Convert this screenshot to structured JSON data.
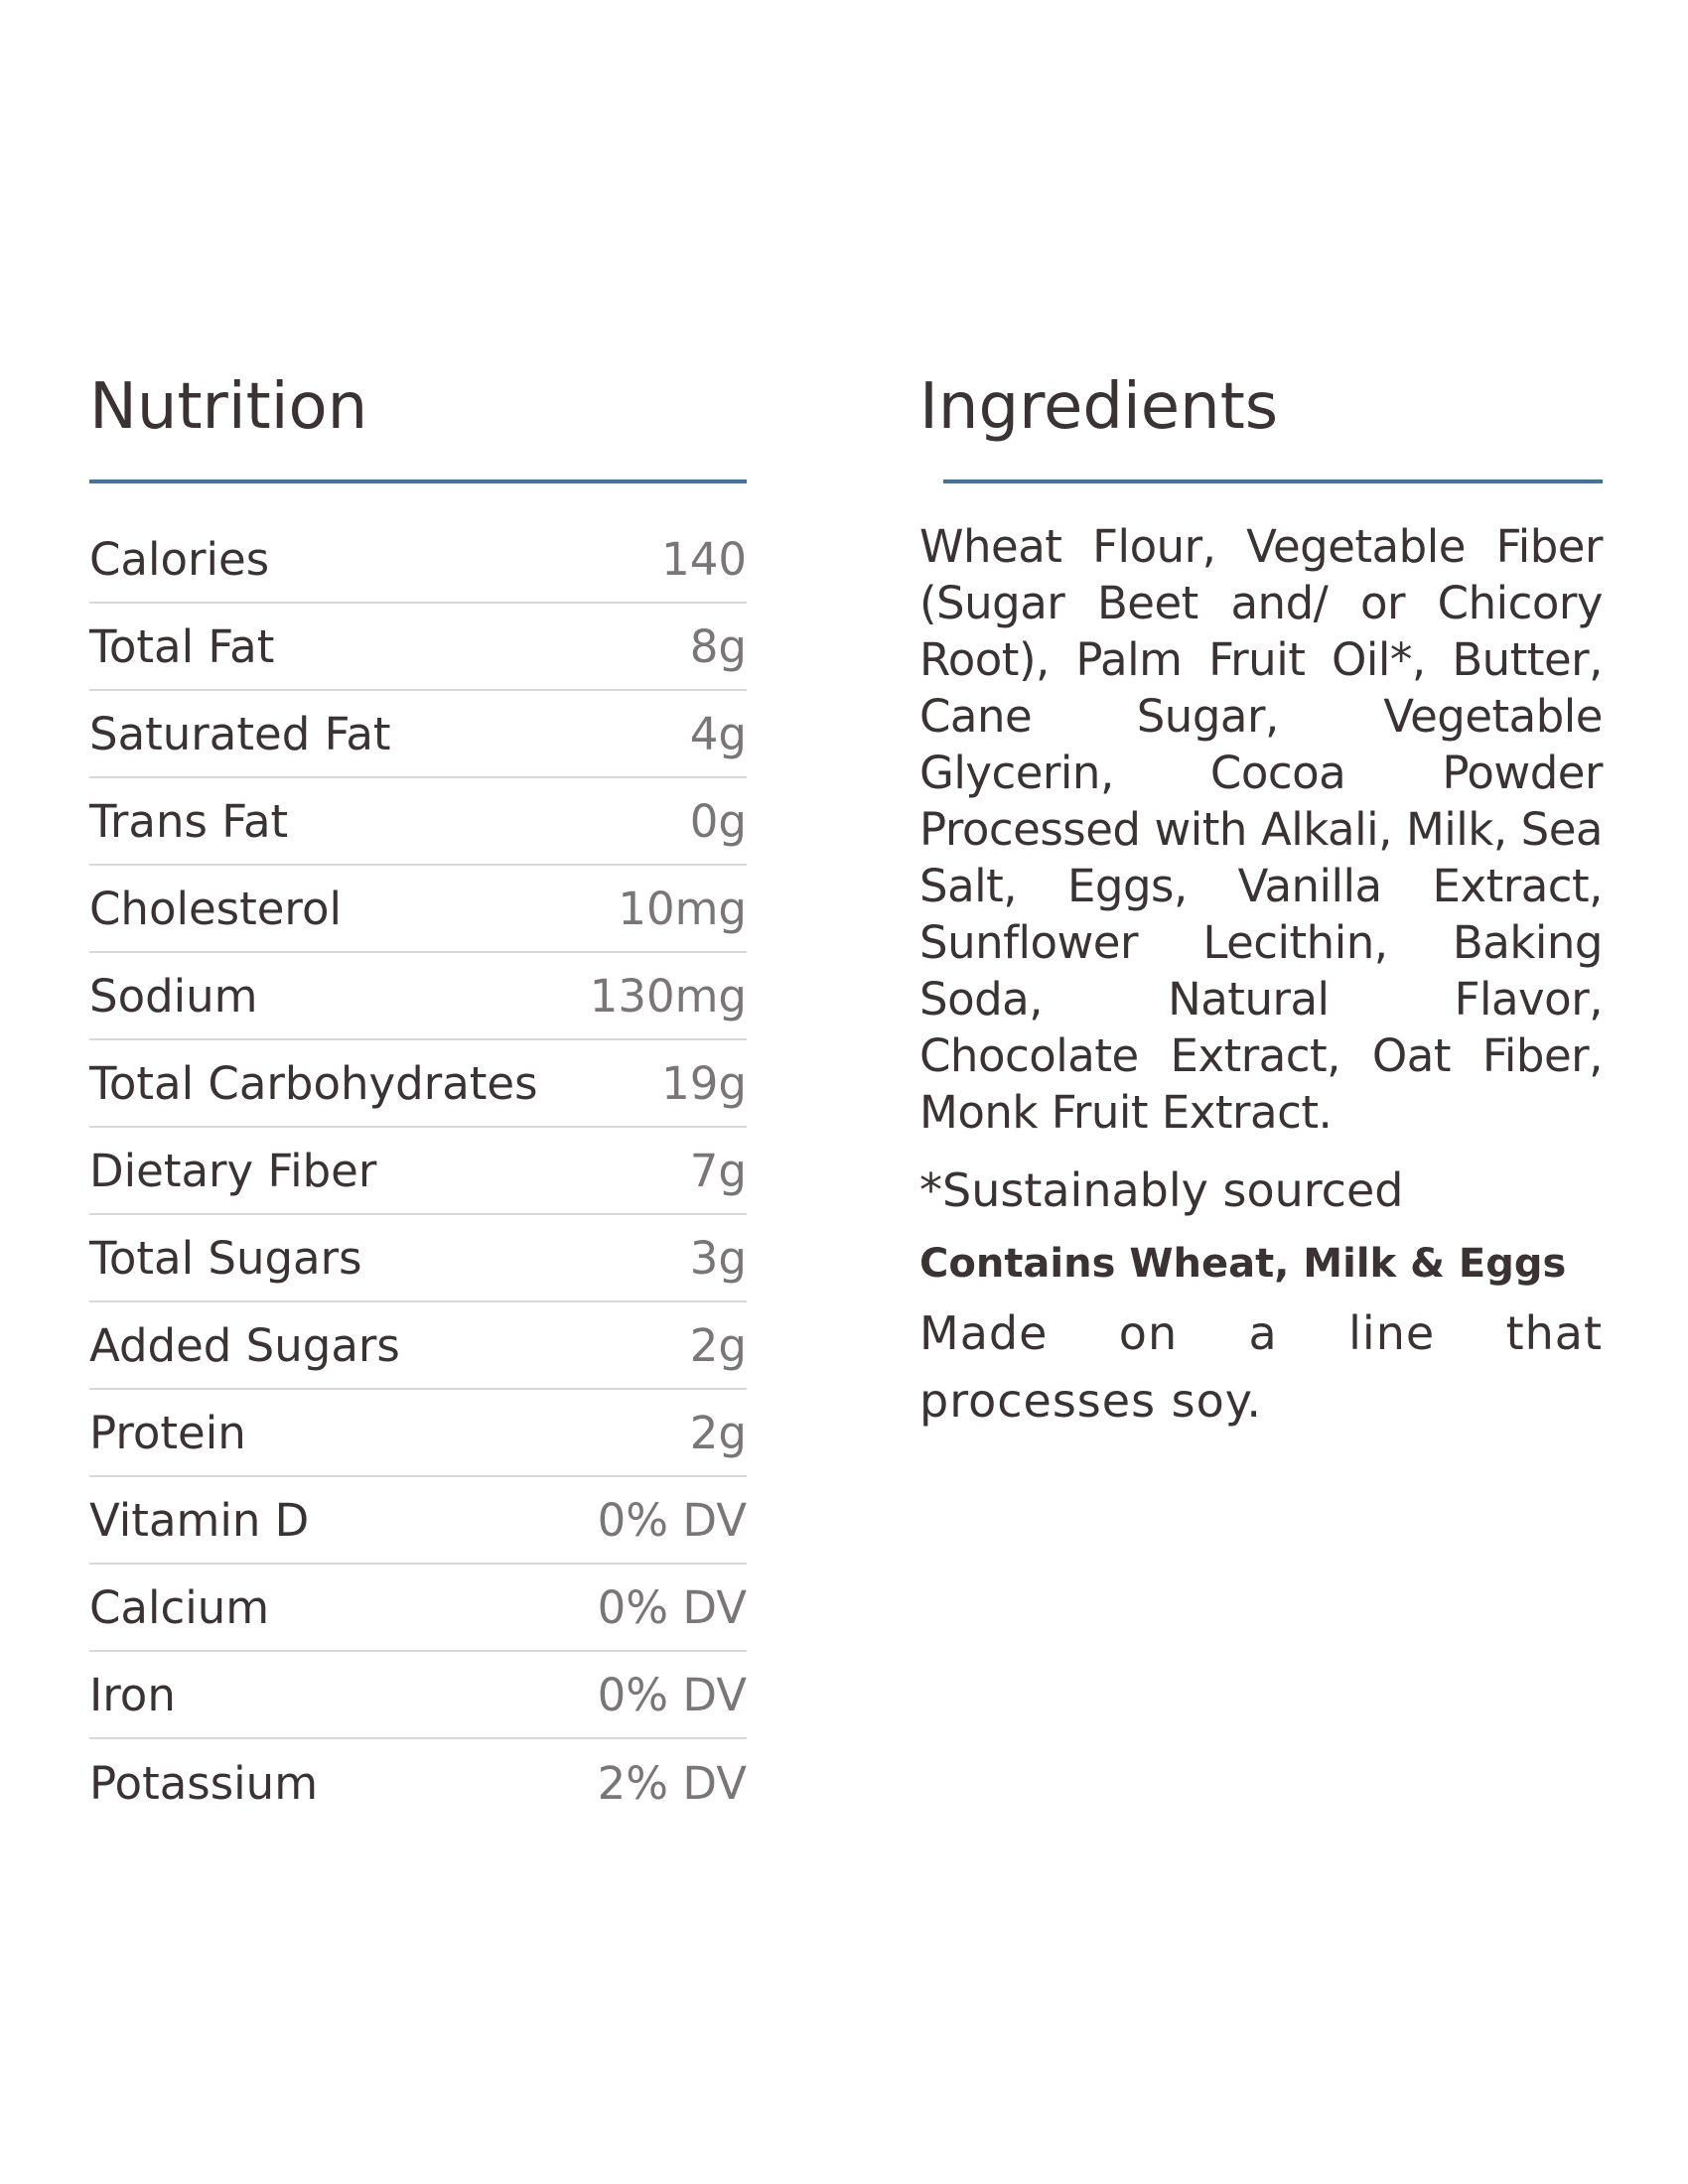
{
  "nutrition": {
    "heading": "Nutrition",
    "rows": [
      {
        "name": "Calories",
        "amount": "140"
      },
      {
        "name": "Total Fat",
        "amount": "8g"
      },
      {
        "name": "Saturated Fat",
        "amount": "4g"
      },
      {
        "name": "Trans Fat",
        "amount": "0g"
      },
      {
        "name": "Cholesterol",
        "amount": "10mg"
      },
      {
        "name": "Sodium",
        "amount": "130mg"
      },
      {
        "name": "Total Carbohydrates",
        "amount": "19g"
      },
      {
        "name": "Dietary Fiber",
        "amount": "7g"
      },
      {
        "name": "Total Sugars",
        "amount": "3g"
      },
      {
        "name": "Added Sugars",
        "amount": "2g"
      },
      {
        "name": "Protein",
        "amount": "2g"
      },
      {
        "name": "Vitamin D",
        "amount": "0% DV"
      },
      {
        "name": "Calcium",
        "amount": "0% DV"
      },
      {
        "name": "Iron",
        "amount": "0% DV"
      },
      {
        "name": "Potassium",
        "amount": "2% DV"
      }
    ]
  },
  "ingredients": {
    "heading": "Ingredients",
    "text": "Wheat Flour, Vegetable Fiber (Sugar Beet and/ or Chicory Root), Palm Fruit Oil*, Butter, Cane Sugar, Vegetable Glycerin, Cocoa Powder Processed with Alkali, Milk, Sea Salt, Eggs, Vanilla Extract, Sunflower Lecithin, Baking Soda, Natural Flavor, Chocolate Extract, Oat Fiber, Monk Fruit Extract.",
    "footnote": "*Sustainably sourced",
    "allergens": "Contains Wheat, Milk & Eggs",
    "processing_note": "Made on a line that processes soy."
  },
  "colors": {
    "accent_rule": "#3f73a3",
    "text": "#3a3233",
    "amount_text": "#7a7576",
    "row_divider": "#d8d8d8"
  }
}
